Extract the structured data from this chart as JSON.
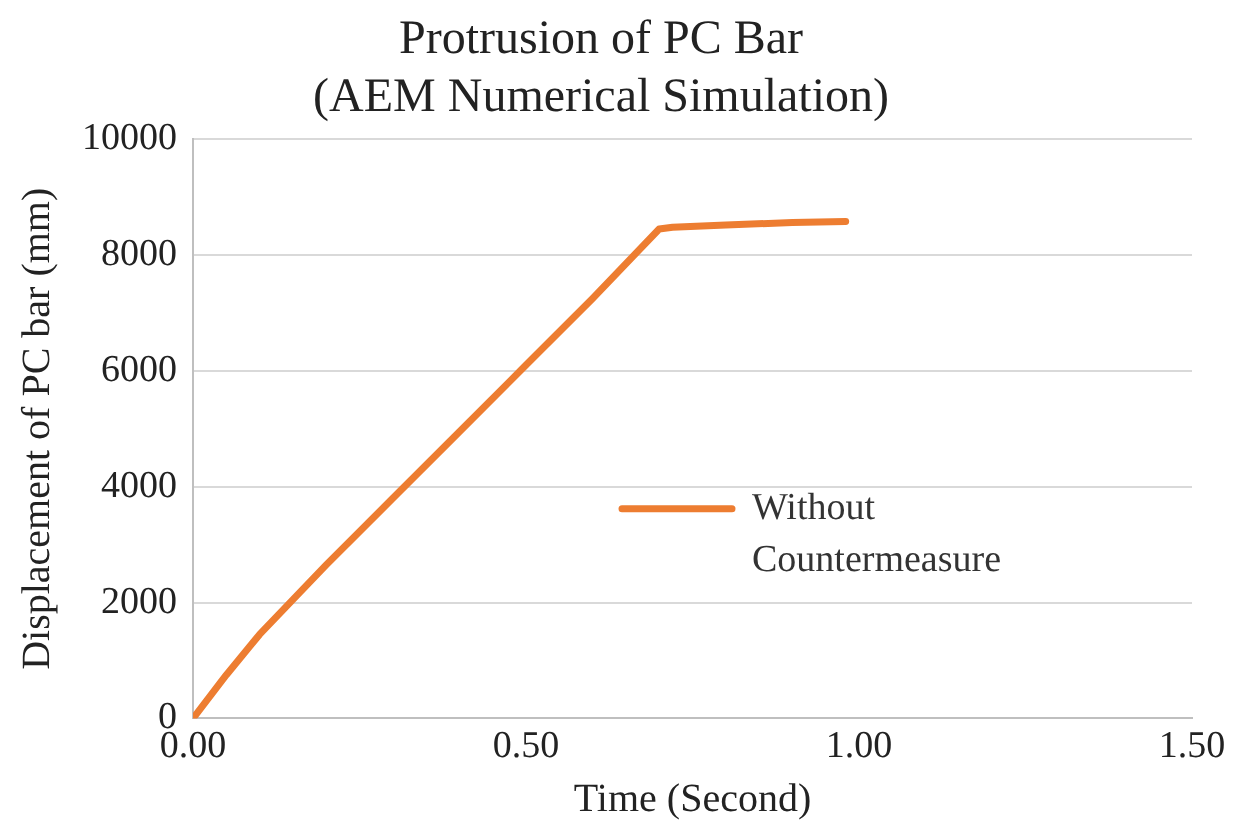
{
  "chart_data": {
    "type": "line",
    "title": [
      "Protrusion of PC Bar",
      "(AEM Numerical Simulation)"
    ],
    "xlabel": "Time (Second)",
    "ylabel": "Displacement of PC bar (mm)",
    "xlim": [
      0,
      1.5
    ],
    "xticks": [
      {
        "value": 0,
        "label": "0.00"
      },
      {
        "value": 0.5,
        "label": "0.50"
      },
      {
        "value": 1,
        "label": "1.00"
      },
      {
        "value": 1.5,
        "label": "1.50"
      }
    ],
    "ylim": [
      0,
      10000
    ],
    "yticks": [
      0,
      2000,
      4000,
      6000,
      8000,
      10000
    ],
    "grid": "y",
    "legend": "center right",
    "marker": "none",
    "line_style": "solid",
    "series": [
      {
        "name": "Without Countermeasure",
        "color": "#ed7d31",
        "x": [
          0,
          0.05,
          0.1,
          0.15,
          0.2,
          0.3,
          0.4,
          0.5,
          0.6,
          0.7,
          0.72,
          0.8,
          0.9,
          0.98
        ],
        "values": [
          0,
          750,
          1450,
          2050,
          2650,
          3800,
          4950,
          6100,
          7250,
          8450,
          8480,
          8520,
          8560,
          8580
        ]
      }
    ]
  }
}
